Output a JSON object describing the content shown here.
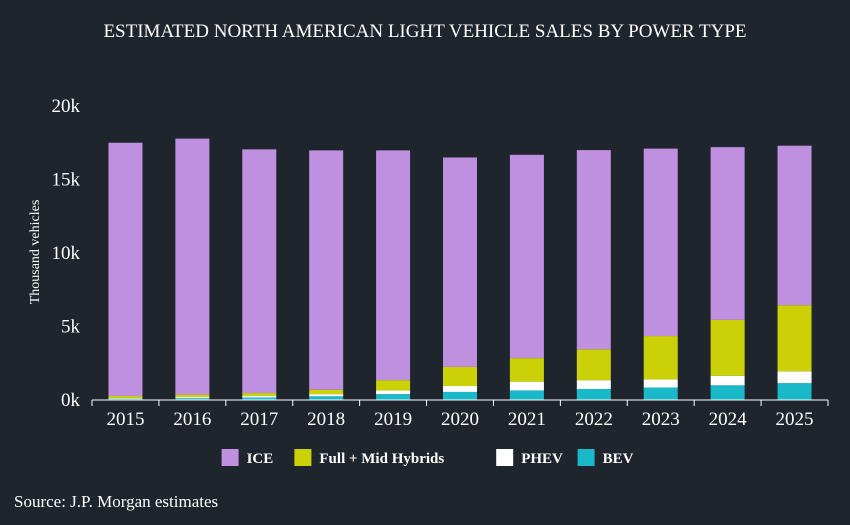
{
  "chart_data": {
    "type": "bar",
    "stacked": true,
    "title": "ESTIMATED NORTH AMERICAN LIGHT VEHICLE SALES BY POWER TYPE",
    "xlabel": "",
    "ylabel": "Thousand vehicles",
    "ylim": [
      0,
      20000
    ],
    "yticks": [
      0,
      5000,
      10000,
      15000,
      20000
    ],
    "ytick_labels": [
      "0k",
      "5k",
      "10k",
      "15k",
      "20k"
    ],
    "categories": [
      "2015",
      "2016",
      "2017",
      "2018",
      "2019",
      "2020",
      "2021",
      "2022",
      "2023",
      "2024",
      "2025"
    ],
    "series": [
      {
        "name": "BEV",
        "color": "#1ab8c8",
        "values": [
          70,
          120,
          170,
          250,
          400,
          550,
          650,
          750,
          850,
          1000,
          1150
        ]
      },
      {
        "name": "PHEV",
        "color": "#ffffff",
        "values": [
          50,
          80,
          100,
          150,
          250,
          400,
          600,
          600,
          550,
          650,
          800
        ]
      },
      {
        "name": "Full + Mid Hybrids",
        "color": "#cbd107",
        "values": [
          150,
          170,
          200,
          300,
          700,
          1300,
          1600,
          2100,
          2950,
          3800,
          4500
        ]
      },
      {
        "name": "ICE",
        "color": "#bf8fe0",
        "values": [
          17230,
          17410,
          16580,
          16280,
          15630,
          14250,
          13830,
          13550,
          12750,
          11750,
          10850
        ]
      }
    ],
    "legend_order": [
      "ICE",
      "Full + Mid Hybrids",
      "PHEV",
      "BEV"
    ],
    "legend_position": "bottom-center",
    "grid": false,
    "source": "Source: J.P. Morgan estimates"
  }
}
